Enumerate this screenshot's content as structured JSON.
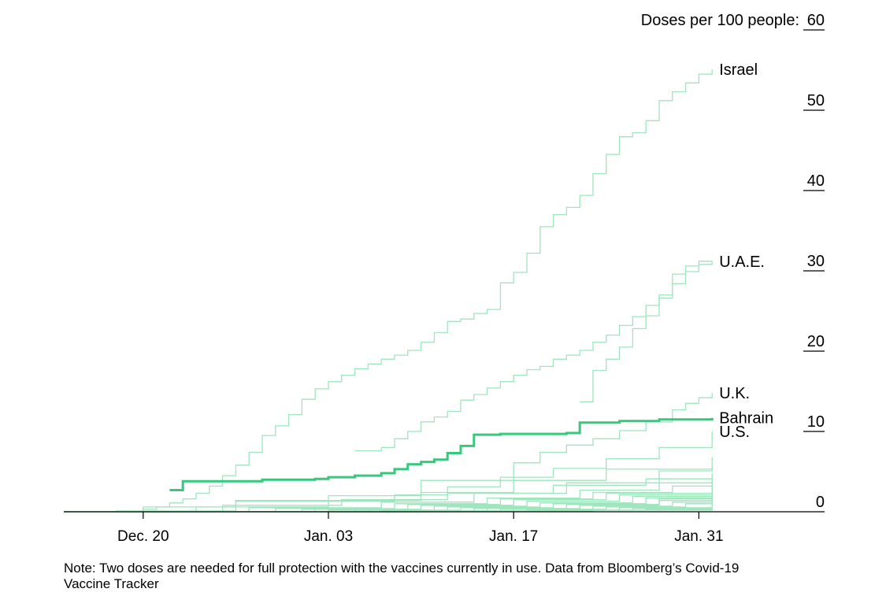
{
  "chart_data": {
    "type": "line",
    "step": true,
    "x_axis_type": "date",
    "x_domain": [
      "2020-12-14",
      "2021-02-21"
    ],
    "ylim": [
      0,
      60
    ],
    "y_ticks": [
      0,
      10,
      20,
      30,
      40,
      50,
      60
    ],
    "y_axis_title": "Doses per 100 people:",
    "x_ticks": [
      {
        "date": "2020-12-20",
        "label": "Dec. 20"
      },
      {
        "date": "2021-01-03",
        "label": "Jan. 03"
      },
      {
        "date": "2021-01-17",
        "label": "Jan. 17"
      },
      {
        "date": "2021-01-31",
        "label": "Jan. 31"
      }
    ],
    "colors": {
      "highlight": "#35c97c",
      "other": "#9fe5bd",
      "axis": "#000000"
    },
    "series": [
      {
        "name": "Israel",
        "highlight": false,
        "x": [
          "2020-12-14",
          "2020-12-18",
          "2020-12-20",
          "2020-12-21",
          "2020-12-22",
          "2020-12-23",
          "2020-12-24",
          "2020-12-25",
          "2020-12-26",
          "2020-12-27",
          "2020-12-28",
          "2020-12-29",
          "2020-12-30",
          "2020-12-31",
          "2021-01-01",
          "2021-01-02",
          "2021-01-03",
          "2021-01-04",
          "2021-01-05",
          "2021-01-06",
          "2021-01-07",
          "2021-01-08",
          "2021-01-09",
          "2021-01-10",
          "2021-01-11",
          "2021-01-12",
          "2021-01-13",
          "2021-01-14",
          "2021-01-15",
          "2021-01-16",
          "2021-01-17",
          "2021-01-18",
          "2021-01-19",
          "2021-01-20",
          "2021-01-21",
          "2021-01-22",
          "2021-01-23",
          "2021-01-24",
          "2021-01-25",
          "2021-01-26",
          "2021-01-27",
          "2021-01-28",
          "2021-01-29",
          "2021-01-30",
          "2021-01-31",
          "2021-02-01"
        ],
        "y": [
          0,
          0.1,
          0.3,
          0.6,
          1.1,
          1.6,
          2.3,
          3.2,
          4.5,
          5.8,
          7.4,
          9.5,
          10.7,
          12.1,
          14.0,
          15.3,
          16.2,
          17.0,
          17.8,
          18.4,
          19.0,
          19.5,
          20.1,
          21.1,
          22.3,
          23.7,
          24.0,
          24.7,
          25.2,
          28.5,
          29.8,
          32.2,
          35.5,
          37.0,
          37.9,
          39.4,
          42.1,
          44.5,
          46.7,
          47.2,
          48.7,
          51.2,
          52.3,
          53.4,
          54.5,
          55.1
        ]
      },
      {
        "name": "U.A.E.",
        "highlight": false,
        "x": [
          "2021-01-05",
          "2021-01-07",
          "2021-01-08",
          "2021-01-09",
          "2021-01-10",
          "2021-01-11",
          "2021-01-12",
          "2021-01-13",
          "2021-01-14",
          "2021-01-15",
          "2021-01-16",
          "2021-01-17",
          "2021-01-18",
          "2021-01-19",
          "2021-01-20",
          "2021-01-21",
          "2021-01-22",
          "2021-01-23",
          "2021-01-24",
          "2021-01-25",
          "2021-01-26",
          "2021-01-27",
          "2021-01-28",
          "2021-01-29",
          "2021-01-30",
          "2021-01-31",
          "2021-02-01"
        ],
        "y": [
          7.6,
          8.0,
          9.1,
          10.0,
          11.2,
          11.8,
          12.5,
          13.9,
          14.6,
          15.4,
          16.2,
          17.0,
          17.7,
          18.1,
          19.0,
          19.5,
          20.1,
          21.1,
          22.0,
          23.2,
          24.3,
          25.7,
          27.0,
          29.6,
          30.6,
          30.8,
          31.2
        ]
      },
      {
        "name": "",
        "highlight": false,
        "x": [
          "2021-01-22",
          "2021-01-23",
          "2021-01-24",
          "2021-01-25",
          "2021-01-26",
          "2021-01-27",
          "2021-01-28",
          "2021-01-29",
          "2021-01-30",
          "2021-01-31",
          "2021-02-01"
        ],
        "y": [
          13.7,
          17.6,
          19.0,
          20.5,
          22.8,
          24.4,
          26.6,
          28.4,
          29.9,
          31.2,
          31.2
        ]
      },
      {
        "name": "U.K.",
        "highlight": false,
        "x": [
          "2020-12-14",
          "2020-12-20",
          "2020-12-27",
          "2021-01-03",
          "2021-01-10",
          "2021-01-17",
          "2021-01-19",
          "2021-01-21",
          "2021-01-23",
          "2021-01-25",
          "2021-01-27",
          "2021-01-29",
          "2021-01-30",
          "2021-01-31",
          "2021-02-01"
        ],
        "y": [
          0,
          0.6,
          1.3,
          2.0,
          3.9,
          6.1,
          7.4,
          8.3,
          9.1,
          10.1,
          11.2,
          12.7,
          13.5,
          14.2,
          14.8
        ]
      },
      {
        "name": "U.S.",
        "highlight": false,
        "x": [
          "2020-12-14",
          "2020-12-20",
          "2020-12-27",
          "2021-01-03",
          "2021-01-08",
          "2021-01-12",
          "2021-01-16",
          "2021-01-20",
          "2021-01-24",
          "2021-01-28",
          "2021-02-01"
        ],
        "y": [
          0,
          0.1,
          1.4,
          1.3,
          2.1,
          3.1,
          4.3,
          5.4,
          6.6,
          8.0,
          10.0
        ]
      },
      {
        "name": "Bahrain",
        "highlight": true,
        "x": [
          "2020-12-22",
          "2020-12-23",
          "2020-12-29",
          "2021-01-02",
          "2021-01-03",
          "2021-01-05",
          "2021-01-07",
          "2021-01-08",
          "2021-01-09",
          "2021-01-10",
          "2021-01-11",
          "2021-01-12",
          "2021-01-13",
          "2021-01-14",
          "2021-01-16",
          "2021-01-21",
          "2021-01-22",
          "2021-01-25",
          "2021-01-26",
          "2021-01-28",
          "2021-02-01"
        ],
        "y": [
          2.7,
          3.8,
          4.0,
          4.1,
          4.3,
          4.5,
          4.8,
          5.3,
          5.9,
          6.2,
          6.5,
          7.3,
          8.2,
          9.6,
          9.7,
          9.8,
          11.1,
          11.3,
          11.3,
          11.5,
          11.7
        ]
      },
      {
        "name": "",
        "highlight": false,
        "x": [
          "2020-12-14",
          "2020-12-24",
          "2021-01-03",
          "2021-01-10",
          "2021-01-17",
          "2021-01-24",
          "2021-02-01"
        ],
        "y": [
          0,
          0.6,
          1.4,
          2.4,
          3.9,
          5.3,
          6.8
        ]
      },
      {
        "name": "",
        "highlight": false,
        "x": [
          "2020-12-14",
          "2020-12-28",
          "2021-01-07",
          "2021-01-14",
          "2021-01-21",
          "2021-01-28",
          "2021-02-01"
        ],
        "y": [
          0,
          0.5,
          1.2,
          2.3,
          3.6,
          5.1,
          5.7
        ]
      },
      {
        "name": "",
        "highlight": false,
        "x": [
          "2020-12-14",
          "2020-12-26",
          "2021-01-04",
          "2021-01-12",
          "2021-01-20",
          "2021-01-27",
          "2021-02-01"
        ],
        "y": [
          0,
          0.8,
          1.5,
          2.3,
          3.3,
          4.1,
          4.8
        ]
      },
      {
        "name": "",
        "highlight": false,
        "x": [
          "2020-12-14",
          "2020-12-30",
          "2021-01-08",
          "2021-01-15",
          "2021-01-22",
          "2021-01-28",
          "2021-02-01"
        ],
        "y": [
          0,
          0.4,
          1.0,
          1.7,
          2.7,
          3.6,
          4.4
        ]
      },
      {
        "name": "",
        "highlight": false,
        "x": [
          "2020-12-14",
          "2021-01-01",
          "2021-01-09",
          "2021-01-16",
          "2021-01-23",
          "2021-01-29",
          "2021-02-01"
        ],
        "y": [
          0,
          0.3,
          0.9,
          1.6,
          2.4,
          3.2,
          4.0
        ]
      },
      {
        "name": "",
        "highlight": false,
        "x": [
          "2020-12-14",
          "2021-01-02",
          "2021-01-10",
          "2021-01-17",
          "2021-01-24",
          "2021-02-01"
        ],
        "y": [
          0,
          0.3,
          0.8,
          1.5,
          2.3,
          3.6
        ]
      },
      {
        "name": "",
        "highlight": false,
        "x": [
          "2020-12-14",
          "2021-01-03",
          "2021-01-11",
          "2021-01-18",
          "2021-01-25",
          "2021-02-01"
        ],
        "y": [
          0,
          0.2,
          0.7,
          1.3,
          2.1,
          3.3
        ]
      },
      {
        "name": "",
        "highlight": false,
        "x": [
          "2020-12-14",
          "2021-01-05",
          "2021-01-12",
          "2021-01-19",
          "2021-01-26",
          "2021-02-01"
        ],
        "y": [
          0,
          0.2,
          0.6,
          1.1,
          1.9,
          3.0
        ]
      },
      {
        "name": "",
        "highlight": false,
        "x": [
          "2020-12-14",
          "2021-01-06",
          "2021-01-13",
          "2021-01-20",
          "2021-01-27",
          "2021-02-01"
        ],
        "y": [
          0,
          0.2,
          0.5,
          1.0,
          1.7,
          2.7
        ]
      },
      {
        "name": "",
        "highlight": false,
        "x": [
          "2020-12-14",
          "2021-01-07",
          "2021-01-14",
          "2021-01-21",
          "2021-01-28",
          "2021-02-01"
        ],
        "y": [
          0,
          0.1,
          0.4,
          0.9,
          1.6,
          2.4
        ]
      },
      {
        "name": "",
        "highlight": false,
        "x": [
          "2020-12-14",
          "2021-01-08",
          "2021-01-15",
          "2021-01-22",
          "2021-01-28",
          "2021-02-01"
        ],
        "y": [
          0,
          0.1,
          0.4,
          0.8,
          1.4,
          2.1
        ]
      },
      {
        "name": "",
        "highlight": false,
        "x": [
          "2020-12-14",
          "2021-01-09",
          "2021-01-16",
          "2021-01-23",
          "2021-01-29",
          "2021-02-01"
        ],
        "y": [
          0,
          0.1,
          0.3,
          0.7,
          1.2,
          1.8
        ]
      },
      {
        "name": "",
        "highlight": false,
        "x": [
          "2020-12-14",
          "2021-01-10",
          "2021-01-17",
          "2021-01-24",
          "2021-01-30",
          "2021-02-01"
        ],
        "y": [
          0,
          0.1,
          0.3,
          0.6,
          1.0,
          1.5
        ]
      },
      {
        "name": "",
        "highlight": false,
        "x": [
          "2020-12-14",
          "2021-01-11",
          "2021-01-18",
          "2021-01-25",
          "2021-02-01"
        ],
        "y": [
          0,
          0.1,
          0.2,
          0.5,
          1.2
        ]
      },
      {
        "name": "",
        "highlight": false,
        "x": [
          "2020-12-14",
          "2021-01-12",
          "2021-01-19",
          "2021-01-26",
          "2021-02-01"
        ],
        "y": [
          0,
          0.1,
          0.2,
          0.4,
          0.9
        ]
      },
      {
        "name": "",
        "highlight": false,
        "x": [
          "2020-12-14",
          "2021-01-14",
          "2021-01-21",
          "2021-01-27",
          "2021-02-01"
        ],
        "y": [
          0,
          0.1,
          0.2,
          0.3,
          0.6
        ]
      },
      {
        "name": "",
        "highlight": false,
        "x": [
          "2020-12-14",
          "2021-01-16",
          "2021-01-23",
          "2021-02-01"
        ],
        "y": [
          0,
          0.1,
          0.2,
          0.3
        ]
      }
    ]
  },
  "note": "Note: Two doses are needed for full protection with the vaccines currently in use. Data from Bloomberg’s Covid-19 Vaccine Tracker"
}
